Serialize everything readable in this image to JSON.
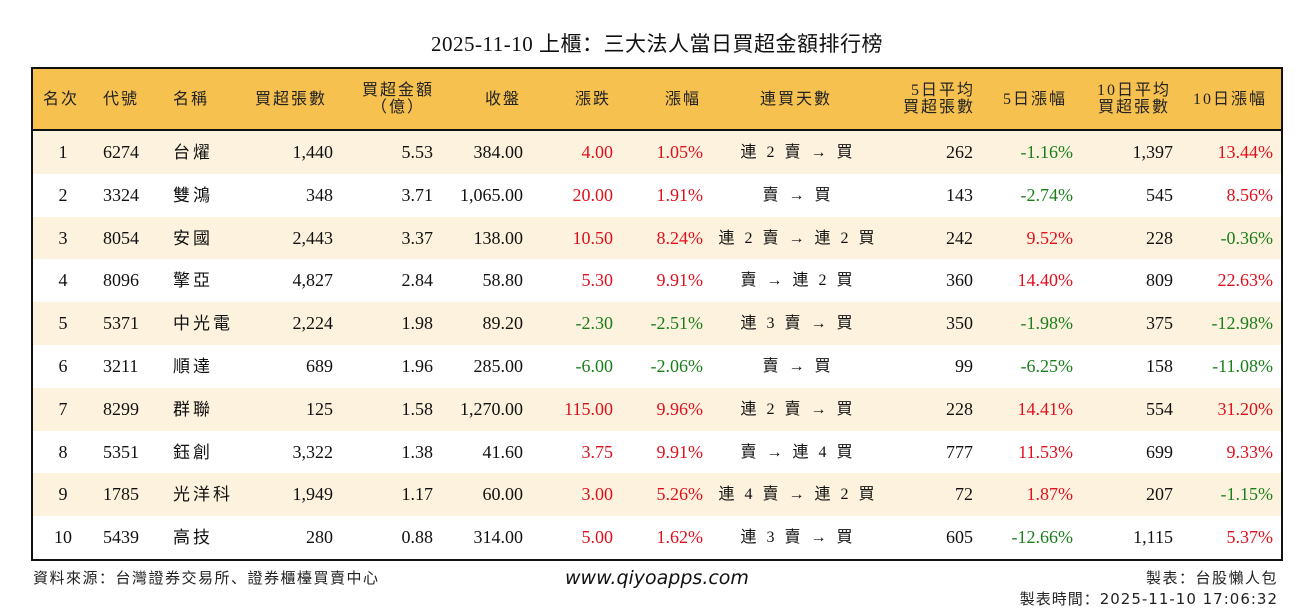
{
  "title": "2025-11-10 上櫃：三大法人當日買超金額排行榜",
  "colors": {
    "header_bg": "#F6C14F",
    "row_alt_bg": "#FDF2DD",
    "up": "#E0101E",
    "down": "#1A7F1A"
  },
  "columns": {
    "rank": "名次",
    "code": "代號",
    "name": "名稱",
    "net_buy_lots": "買超張數",
    "net_buy_amount_l1": "買超金額",
    "net_buy_amount_l2": "（億）",
    "close": "收盤",
    "change": "漲跌",
    "change_pct": "漲幅",
    "streak": "連買天數",
    "avg5_l1": "5日平均",
    "avg5_l2": "買超張數",
    "pct5": "5日漲幅",
    "avg10_l1": "10日平均",
    "avg10_l2": "買超張數",
    "pct10": "10日漲幅"
  },
  "rows": [
    {
      "rank": "1",
      "code": "6274",
      "name": "台燿",
      "lots": "1,440",
      "amount": "5.53",
      "close": "384.00",
      "change": "4.00",
      "change_dir": "up",
      "pct": "1.05%",
      "pct_dir": "up",
      "streak": "連 2 賣 → 買",
      "avg5": "262",
      "pct5": "-1.16%",
      "pct5_dir": "down",
      "avg10": "1,397",
      "pct10": "13.44%",
      "pct10_dir": "up"
    },
    {
      "rank": "2",
      "code": "3324",
      "name": "雙鴻",
      "lots": "348",
      "amount": "3.71",
      "close": "1,065.00",
      "change": "20.00",
      "change_dir": "up",
      "pct": "1.91%",
      "pct_dir": "up",
      "streak": "賣 → 買",
      "avg5": "143",
      "pct5": "-2.74%",
      "pct5_dir": "down",
      "avg10": "545",
      "pct10": "8.56%",
      "pct10_dir": "up"
    },
    {
      "rank": "3",
      "code": "8054",
      "name": "安國",
      "lots": "2,443",
      "amount": "3.37",
      "close": "138.00",
      "change": "10.50",
      "change_dir": "up",
      "pct": "8.24%",
      "pct_dir": "up",
      "streak": "連 2 賣 → 連 2 買",
      "avg5": "242",
      "pct5": "9.52%",
      "pct5_dir": "up",
      "avg10": "228",
      "pct10": "-0.36%",
      "pct10_dir": "down"
    },
    {
      "rank": "4",
      "code": "8096",
      "name": "擎亞",
      "lots": "4,827",
      "amount": "2.84",
      "close": "58.80",
      "change": "5.30",
      "change_dir": "up",
      "pct": "9.91%",
      "pct_dir": "up",
      "streak": "賣 → 連 2 買",
      "avg5": "360",
      "pct5": "14.40%",
      "pct5_dir": "up",
      "avg10": "809",
      "pct10": "22.63%",
      "pct10_dir": "up"
    },
    {
      "rank": "5",
      "code": "5371",
      "name": "中光電",
      "lots": "2,224",
      "amount": "1.98",
      "close": "89.20",
      "change": "-2.30",
      "change_dir": "down",
      "pct": "-2.51%",
      "pct_dir": "down",
      "streak": "連 3 賣 → 買",
      "avg5": "350",
      "pct5": "-1.98%",
      "pct5_dir": "down",
      "avg10": "375",
      "pct10": "-12.98%",
      "pct10_dir": "down"
    },
    {
      "rank": "6",
      "code": "3211",
      "name": "順達",
      "lots": "689",
      "amount": "1.96",
      "close": "285.00",
      "change": "-6.00",
      "change_dir": "down",
      "pct": "-2.06%",
      "pct_dir": "down",
      "streak": "賣 → 買",
      "avg5": "99",
      "pct5": "-6.25%",
      "pct5_dir": "down",
      "avg10": "158",
      "pct10": "-11.08%",
      "pct10_dir": "down"
    },
    {
      "rank": "7",
      "code": "8299",
      "name": "群聯",
      "lots": "125",
      "amount": "1.58",
      "close": "1,270.00",
      "change": "115.00",
      "change_dir": "up",
      "pct": "9.96%",
      "pct_dir": "up",
      "streak": "連 2 賣 → 買",
      "avg5": "228",
      "pct5": "14.41%",
      "pct5_dir": "up",
      "avg10": "554",
      "pct10": "31.20%",
      "pct10_dir": "up"
    },
    {
      "rank": "8",
      "code": "5351",
      "name": "鈺創",
      "lots": "3,322",
      "amount": "1.38",
      "close": "41.60",
      "change": "3.75",
      "change_dir": "up",
      "pct": "9.91%",
      "pct_dir": "up",
      "streak": "賣 → 連 4 買",
      "avg5": "777",
      "pct5": "11.53%",
      "pct5_dir": "up",
      "avg10": "699",
      "pct10": "9.33%",
      "pct10_dir": "up"
    },
    {
      "rank": "9",
      "code": "1785",
      "name": "光洋科",
      "lots": "1,949",
      "amount": "1.17",
      "close": "60.00",
      "change": "3.00",
      "change_dir": "up",
      "pct": "5.26%",
      "pct_dir": "up",
      "streak": "連 4 賣 → 連 2 買",
      "avg5": "72",
      "pct5": "1.87%",
      "pct5_dir": "up",
      "avg10": "207",
      "pct10": "-1.15%",
      "pct10_dir": "down"
    },
    {
      "rank": "10",
      "code": "5439",
      "name": "高技",
      "lots": "280",
      "amount": "0.88",
      "close": "314.00",
      "change": "5.00",
      "change_dir": "up",
      "pct": "1.62%",
      "pct_dir": "up",
      "streak": "連 3 賣 → 買",
      "avg5": "605",
      "pct5": "-12.66%",
      "pct5_dir": "down",
      "avg10": "1,115",
      "pct10": "5.37%",
      "pct10_dir": "up"
    }
  ],
  "footer": {
    "source": "資料來源：台灣證券交易所、證券櫃檯買賣中心",
    "website": "www.qiyoapps.com",
    "maker": "製表：台股懶人包",
    "made_time": "製表時間：2025-11-10 17:06:32"
  }
}
